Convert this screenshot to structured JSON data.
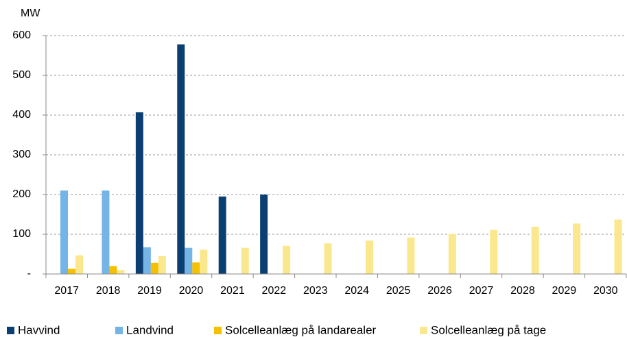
{
  "chart_data": {
    "type": "bar",
    "y_label": "MW",
    "categories": [
      "2017",
      "2018",
      "2019",
      "2020",
      "2021",
      "2022",
      "2023",
      "2024",
      "2025",
      "2026",
      "2027",
      "2028",
      "2029",
      "2030"
    ],
    "series": [
      {
        "name": "Havvind",
        "color": "#0b3f73",
        "values": [
          null,
          null,
          407,
          578,
          195,
          200,
          null,
          null,
          null,
          null,
          null,
          null,
          null,
          null
        ]
      },
      {
        "name": "Landvind",
        "color": "#74b4e6",
        "values": [
          210,
          210,
          67,
          66,
          null,
          null,
          null,
          null,
          null,
          null,
          null,
          null,
          null,
          null
        ]
      },
      {
        "name": "Solcelleanlæg på landarealer",
        "color": "#f5c000",
        "values": [
          13,
          20,
          28,
          29,
          null,
          null,
          null,
          null,
          null,
          null,
          null,
          null,
          null,
          null
        ]
      },
      {
        "name": "Solcelleanlæg på tage",
        "color": "#fbe88e",
        "values": [
          47,
          10,
          45,
          61,
          66,
          71,
          77,
          84,
          92,
          101,
          111,
          119,
          127,
          137
        ]
      }
    ],
    "ylim": [
      0,
      600
    ],
    "yticks": [
      {
        "value": 0,
        "label": "-"
      },
      100,
      200,
      300,
      400,
      500,
      600
    ],
    "grid": true,
    "legend": "bottom"
  }
}
